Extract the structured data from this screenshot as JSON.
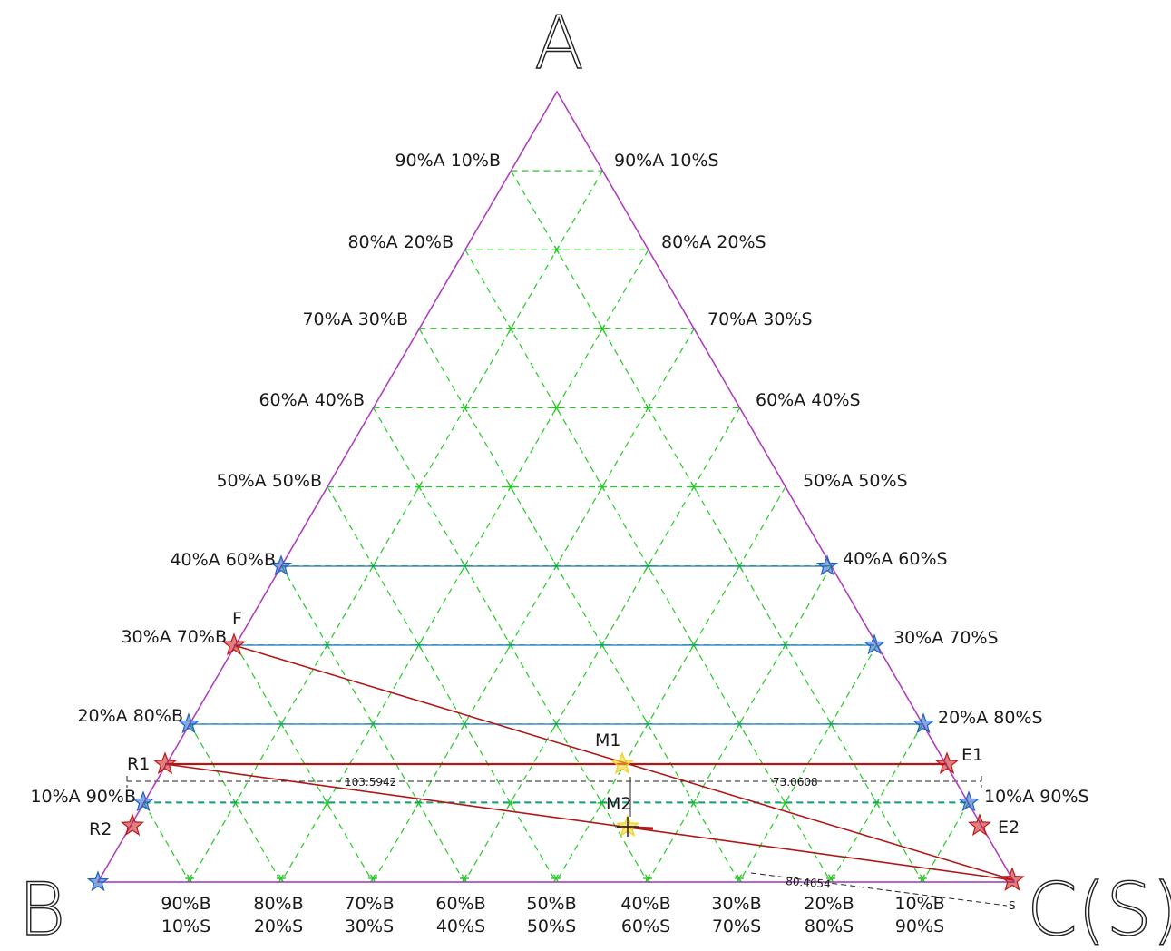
{
  "vertices": {
    "top": "A",
    "left": "B",
    "right": "C(S)"
  },
  "left_edge_labels": [
    "90%A  10%B",
    "80%A  20%B",
    "70%A  30%B",
    "60%A  40%B",
    "50%A  50%B",
    "40%A  60%B",
    "30%A  70%B",
    "20%A  80%B",
    "10%A  90%B"
  ],
  "right_edge_labels": [
    "90%A  10%S",
    "80%A  20%S",
    "70%A  30%S",
    "60%A  40%S",
    "50%A  50%S",
    "40%A  60%S",
    "30%A  70%S",
    "20%A  80%S",
    "10%A  90%S"
  ],
  "bottom_labels": [
    {
      "top": "90%B",
      "bottom": "10%S"
    },
    {
      "top": "80%B",
      "bottom": "20%S"
    },
    {
      "top": "70%B",
      "bottom": "30%S"
    },
    {
      "top": "60%B",
      "bottom": "40%S"
    },
    {
      "top": "50%B",
      "bottom": "50%S"
    },
    {
      "top": "40%B",
      "bottom": "60%S"
    },
    {
      "top": "30%B",
      "bottom": "70%S"
    },
    {
      "top": "20%B",
      "bottom": "80%S"
    },
    {
      "top": "10%B",
      "bottom": "90%S"
    }
  ],
  "points": {
    "F": "F",
    "R1": "R1",
    "R2": "R2",
    "E1": "E1",
    "E2": "E2",
    "M1": "M1",
    "M2": "M2",
    "S": "S"
  },
  "dimensions": {
    "left": "103.5942",
    "right": "73.0608",
    "bottom": "80.4654"
  },
  "colors": {
    "triangle": "#b040c0",
    "grid": "#22cc22",
    "tie_line": "#1f78c8",
    "process_line": "#b01818",
    "blue_star": "#2060c0",
    "red_star": "#c01818",
    "mix_point": "#f2d020"
  }
}
